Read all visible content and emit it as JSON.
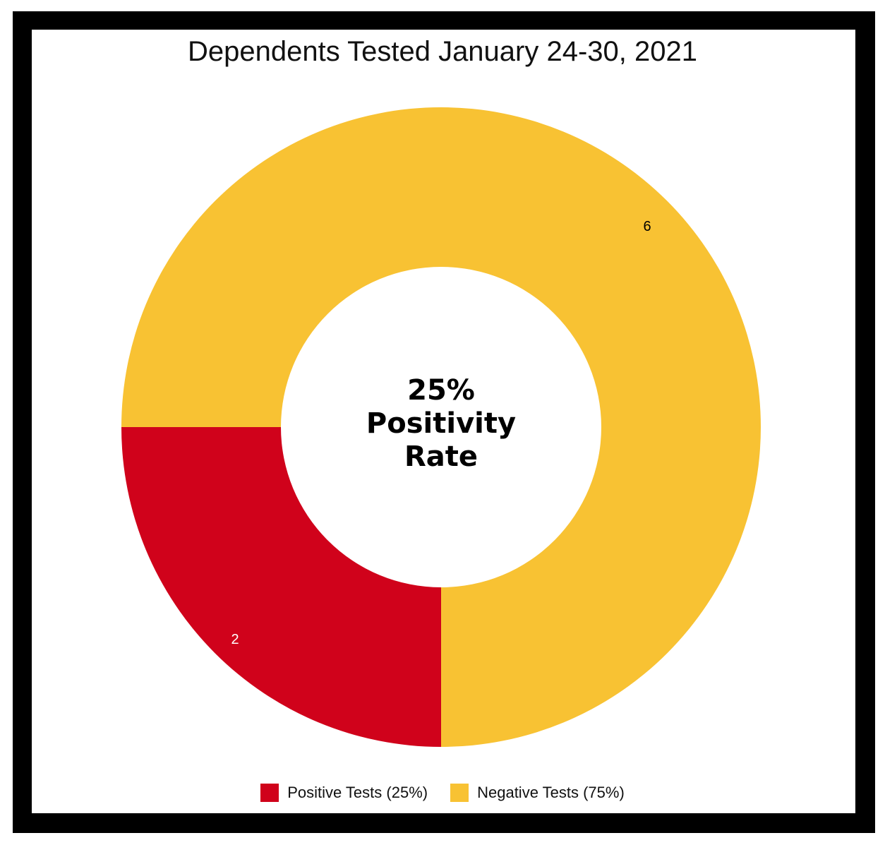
{
  "chart_data": {
    "type": "pie",
    "title": "Dependents Tested January 24-30, 2021",
    "center_text": [
      "25%",
      "Positivity",
      "Rate"
    ],
    "slices": [
      {
        "name": "Positive Tests (25%)",
        "value": 2,
        "label": "2",
        "color": "#d0021b",
        "label_color": "#ffffff"
      },
      {
        "name": "Negative Tests (75%)",
        "value": 6,
        "label": "6",
        "color": "#f8c233",
        "label_color": "#000000"
      }
    ],
    "legend_placement": "bottom",
    "donut": true
  }
}
